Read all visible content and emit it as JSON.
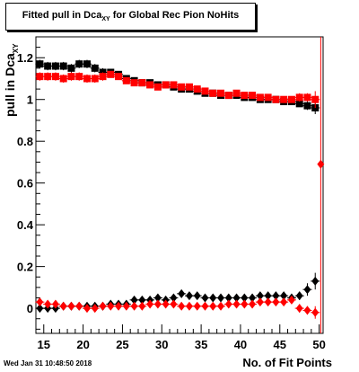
{
  "title_main": "Fitted pull in Dca",
  "title_sub": "XY",
  "title_rest": " for Global Rec Pion NoHits",
  "ylabel_main": "pull in Dca",
  "ylabel_sub": "XY",
  "xlabel": "No. of Fit Points",
  "timestamp": "Wed Jan 31 10:48:50 2018",
  "chart_data": {
    "type": "scatter",
    "title": "Fitted pull in DcaXY for Global Rec Pion NoHits",
    "xlabel": "No. of Fit Points",
    "ylabel": "pull in DcaXY",
    "xlim": [
      14,
      50.5
    ],
    "ylim": [
      -0.12,
      1.3
    ],
    "x_ticks": [
      15,
      20,
      25,
      30,
      35,
      40,
      45,
      50
    ],
    "y_ticks": [
      0,
      0.2,
      0.4,
      0.6,
      0.8,
      1,
      1.2
    ],
    "grid": false,
    "x": [
      14.5,
      15.5,
      16.5,
      17.5,
      18.5,
      19.5,
      20.5,
      21.5,
      22.5,
      23.5,
      24.5,
      25.5,
      26.5,
      27.5,
      28.5,
      29.5,
      30.5,
      31.5,
      32.5,
      33.5,
      34.5,
      35.5,
      36.5,
      37.5,
      38.5,
      39.5,
      40.5,
      41.5,
      42.5,
      43.5,
      44.5,
      45.5,
      46.5,
      47.5,
      48.5,
      49.5
    ],
    "series": [
      {
        "color": "#000000",
        "marker": "square",
        "values": [
          1.17,
          1.16,
          1.16,
          1.16,
          1.15,
          1.17,
          1.17,
          1.15,
          1.13,
          1.13,
          1.12,
          1.1,
          1.09,
          1.08,
          1.08,
          1.07,
          1.07,
          1.06,
          1.05,
          1.05,
          1.04,
          1.03,
          1.03,
          1.02,
          1.02,
          1.02,
          1.01,
          1.01,
          1.0,
          1.0,
          1.0,
          0.99,
          0.99,
          0.98,
          0.97,
          0.96
        ],
        "errors": [
          0.02,
          0.02,
          0.02,
          0.02,
          0.02,
          0.02,
          0.02,
          0.02,
          0.02,
          0.01,
          0.01,
          0.01,
          0.01,
          0.01,
          0.01,
          0.01,
          0.01,
          0.01,
          0.01,
          0.01,
          0.01,
          0.01,
          0.01,
          0.01,
          0.01,
          0.01,
          0.01,
          0.01,
          0.01,
          0.01,
          0.01,
          0.01,
          0.01,
          0.01,
          0.02,
          0.03
        ]
      },
      {
        "color": "#ff0000",
        "marker": "square",
        "values": [
          1.11,
          1.11,
          1.11,
          1.1,
          1.11,
          1.11,
          1.1,
          1.1,
          1.11,
          1.12,
          1.11,
          1.09,
          1.08,
          1.08,
          1.07,
          1.06,
          1.07,
          1.07,
          1.06,
          1.06,
          1.05,
          1.04,
          1.03,
          1.03,
          1.02,
          1.03,
          1.02,
          1.02,
          1.01,
          1.01,
          1.0,
          1.0,
          1.0,
          1.01,
          1.01,
          1.0
        ],
        "errors": [
          0.02,
          0.02,
          0.02,
          0.02,
          0.02,
          0.02,
          0.02,
          0.02,
          0.02,
          0.01,
          0.01,
          0.01,
          0.01,
          0.01,
          0.01,
          0.01,
          0.01,
          0.01,
          0.01,
          0.01,
          0.01,
          0.01,
          0.01,
          0.01,
          0.01,
          0.01,
          0.01,
          0.01,
          0.01,
          0.01,
          0.01,
          0.01,
          0.01,
          0.02,
          0.02,
          0.04
        ]
      },
      {
        "color": "#000000",
        "marker": "diamond",
        "values": [
          0.0,
          0.0,
          0.0,
          0.01,
          0.01,
          0.01,
          0.01,
          0.01,
          0.01,
          0.02,
          0.02,
          0.02,
          0.04,
          0.04,
          0.04,
          0.05,
          0.04,
          0.05,
          0.07,
          0.06,
          0.06,
          0.05,
          0.05,
          0.05,
          0.05,
          0.05,
          0.05,
          0.05,
          0.06,
          0.06,
          0.06,
          0.06,
          0.05,
          0.06,
          0.09,
          0.13
        ],
        "errors": [
          0.015,
          0.015,
          0.015,
          0.015,
          0.015,
          0.015,
          0.015,
          0.015,
          0.015,
          0.015,
          0.015,
          0.015,
          0.015,
          0.015,
          0.015,
          0.015,
          0.015,
          0.015,
          0.015,
          0.015,
          0.015,
          0.015,
          0.015,
          0.015,
          0.015,
          0.015,
          0.015,
          0.015,
          0.015,
          0.015,
          0.015,
          0.015,
          0.015,
          0.02,
          0.03,
          0.04
        ]
      },
      {
        "color": "#ff0000",
        "marker": "diamond",
        "values": [
          0.03,
          0.02,
          0.02,
          0.01,
          0.01,
          0.01,
          0.0,
          0.0,
          0.01,
          0.01,
          0.01,
          0.01,
          0.01,
          0.01,
          0.02,
          0.02,
          0.02,
          0.02,
          0.01,
          0.01,
          0.01,
          0.01,
          0.01,
          0.01,
          0.02,
          0.02,
          0.02,
          0.02,
          0.03,
          0.03,
          0.03,
          0.03,
          0.04,
          0.0,
          -0.01,
          -0.02
        ],
        "errors": [
          0.015,
          0.015,
          0.015,
          0.015,
          0.015,
          0.015,
          0.015,
          0.015,
          0.015,
          0.015,
          0.015,
          0.015,
          0.015,
          0.015,
          0.015,
          0.015,
          0.015,
          0.015,
          0.015,
          0.015,
          0.015,
          0.015,
          0.015,
          0.015,
          0.015,
          0.015,
          0.015,
          0.015,
          0.015,
          0.015,
          0.015,
          0.015,
          0.015,
          0.02,
          0.02,
          0.03
        ]
      }
    ],
    "outlier": {
      "x": 50.2,
      "y": 0.69,
      "color": "#ff0000",
      "marker": "diamond",
      "error": 0.6
    }
  }
}
